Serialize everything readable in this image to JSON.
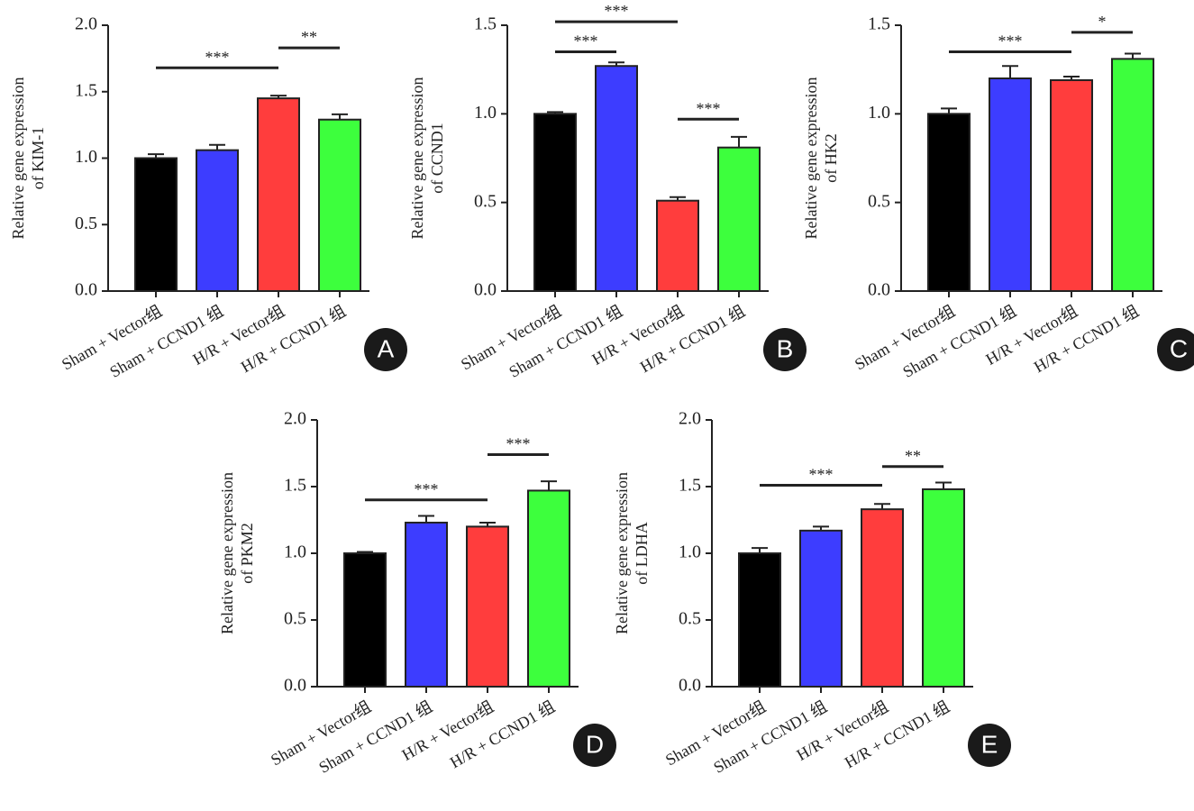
{
  "chart_data": [
    {
      "type": "bar",
      "panel": "A",
      "ylabel": [
        "Relative gene expression",
        "of KIM-1"
      ],
      "categories": [
        "Sham + Vector组",
        "Sham + CCND1 组",
        "H/R + Vector组",
        "H/R + CCND1 组"
      ],
      "colors": [
        "#000000",
        "#3d3dff",
        "#ff3d3d",
        "#3dff3d"
      ],
      "values": [
        1.0,
        1.06,
        1.45,
        1.29
      ],
      "errors": [
        0.03,
        0.04,
        0.02,
        0.04
      ],
      "ylim": [
        0,
        2
      ],
      "yticks": [
        {
          "value": 0,
          "label": "0.0"
        },
        {
          "value": 0.5,
          "label": "0.5"
        },
        {
          "value": 1,
          "label": "1.0"
        },
        {
          "value": 1.5,
          "label": "1.5"
        },
        {
          "value": 2,
          "label": "2.0"
        }
      ],
      "annotations": [
        {
          "text": "***",
          "from": 0,
          "to": 2,
          "y": 1.68
        },
        {
          "text": "**",
          "from": 2,
          "to": 3,
          "y": 1.83
        }
      ]
    },
    {
      "type": "bar",
      "panel": "B",
      "ylabel": [
        "Relative gene expression",
        "of CCND1"
      ],
      "categories": [
        "Sham + Vector组",
        "Sham + CCND1 组",
        "H/R + Vector组",
        "H/R + CCND1 组"
      ],
      "colors": [
        "#000000",
        "#3d3dff",
        "#ff3d3d",
        "#3dff3d"
      ],
      "values": [
        1.0,
        1.27,
        0.51,
        0.81
      ],
      "errors": [
        0.01,
        0.02,
        0.02,
        0.06
      ],
      "ylim": [
        0,
        1.5
      ],
      "yticks": [
        {
          "value": 0,
          "label": "0.0"
        },
        {
          "value": 0.5,
          "label": "0.5"
        },
        {
          "value": 1,
          "label": "1.0"
        },
        1.5
      ],
      "annotations": [
        {
          "text": "***",
          "from": 0,
          "to": 2,
          "y": 1.52
        },
        {
          "text": "***",
          "from": 0,
          "to": 1,
          "y": 1.35
        },
        {
          "text": "***",
          "from": 2,
          "to": 3,
          "y": 0.97
        }
      ]
    },
    {
      "type": "bar",
      "panel": "C",
      "ylabel": [
        "Relative gene expression",
        "of HK2"
      ],
      "categories": [
        "Sham + Vector组",
        "Sham + CCND1 组",
        "H/R + Vector组",
        "H/R + CCND1 组"
      ],
      "colors": [
        "#000000",
        "#3d3dff",
        "#ff3d3d",
        "#3dff3d"
      ],
      "values": [
        1.0,
        1.2,
        1.19,
        1.31
      ],
      "errors": [
        0.03,
        0.07,
        0.02,
        0.03
      ],
      "ylim": [
        0,
        1.5
      ],
      "yticks": [
        {
          "value": 0,
          "label": "0.0"
        },
        {
          "value": 0.5,
          "label": "0.5"
        },
        {
          "value": 1,
          "label": "1.0"
        },
        1.5
      ],
      "annotations": [
        {
          "text": "***",
          "from": 0,
          "to": 2,
          "y": 1.35
        },
        {
          "text": "*",
          "from": 2,
          "to": 3,
          "y": 1.46
        }
      ]
    },
    {
      "type": "bar",
      "panel": "D",
      "ylabel": [
        "Relative gene expression",
        "of PKM2"
      ],
      "categories": [
        "Sham + Vector组",
        "Sham + CCND1 组",
        "H/R + Vector组",
        "H/R + CCND1 组"
      ],
      "colors": [
        "#000000",
        "#3d3dff",
        "#ff3d3d",
        "#3dff3d"
      ],
      "values": [
        1.0,
        1.23,
        1.2,
        1.47
      ],
      "errors": [
        0.01,
        0.05,
        0.03,
        0.07
      ],
      "ylim": [
        0,
        2
      ],
      "yticks": [
        {
          "value": 0,
          "label": "0.0"
        },
        {
          "value": 0.5,
          "label": "0.5"
        },
        {
          "value": 1,
          "label": "1.0"
        },
        {
          "value": 1.5,
          "label": "1.5"
        },
        {
          "value": 2,
          "label": "2.0"
        }
      ],
      "annotations": [
        {
          "text": "***",
          "from": 0,
          "to": 2,
          "y": 1.4
        },
        {
          "text": "***",
          "from": 2,
          "to": 3,
          "y": 1.74
        }
      ]
    },
    {
      "type": "bar",
      "panel": "E",
      "ylabel": [
        "Relative gene expression",
        "of LDHA"
      ],
      "categories": [
        "Sham + Vector组",
        "Sham + CCND1 组",
        "H/R + Vector组",
        "H/R + CCND1 组"
      ],
      "colors": [
        "#000000",
        "#3d3dff",
        "#ff3d3d",
        "#3dff3d"
      ],
      "values": [
        1.0,
        1.17,
        1.33,
        1.48
      ],
      "errors": [
        0.04,
        0.03,
        0.04,
        0.05
      ],
      "ylim": [
        0,
        2
      ],
      "yticks": [
        {
          "value": 0,
          "label": "0.0"
        },
        {
          "value": 0.5,
          "label": "0.5"
        },
        {
          "value": 1,
          "label": "1.0"
        },
        {
          "value": 1.5,
          "label": "1.5"
        },
        {
          "value": 2,
          "label": "2.0"
        }
      ],
      "annotations": [
        {
          "text": "***",
          "from": 0,
          "to": 2,
          "y": 1.51
        },
        {
          "text": "**",
          "from": 2,
          "to": 3,
          "y": 1.65
        }
      ]
    }
  ]
}
